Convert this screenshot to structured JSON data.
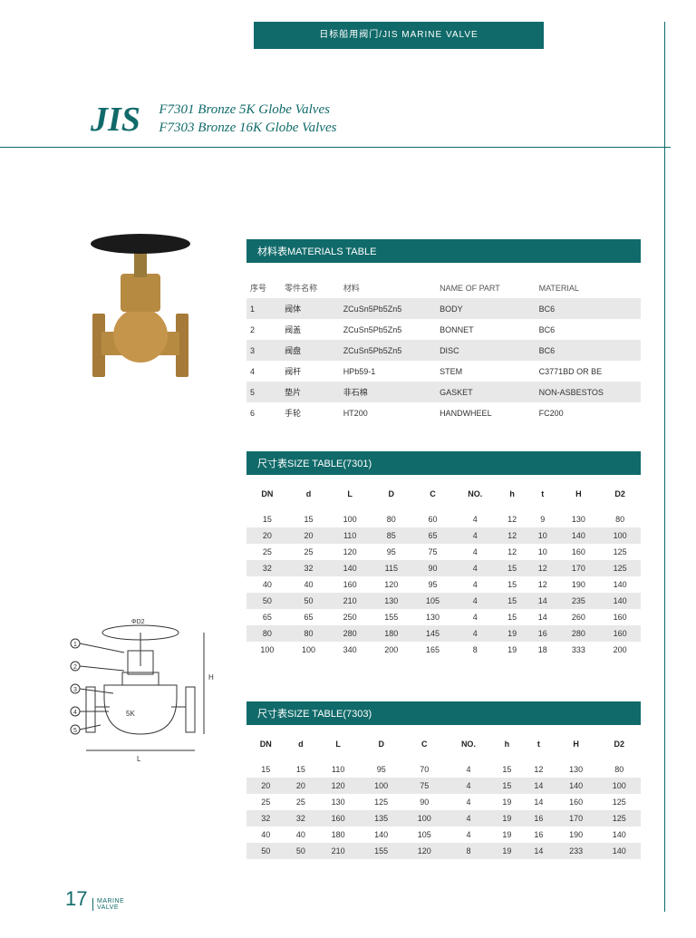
{
  "banner": "日标船用阀门/JIS MARINE VALVE",
  "logo": "JIS",
  "title1": "F7301 Bronze 5K Globe Valves",
  "title2": "F7303 Bronze 16K Globe Valves",
  "section_materials": "材料表MATERIALS TABLE",
  "section_size1": "尺寸表SIZE TABLE(7301)",
  "section_size2": "尺寸表SIZE TABLE(7303)",
  "materials": {
    "head": [
      "序号",
      "零件名称",
      "材料",
      "NAME OF PART",
      "MATERIAL"
    ],
    "rows": [
      [
        "1",
        "阀体",
        "ZCuSn5Pb5Zn5",
        "BODY",
        "BC6"
      ],
      [
        "2",
        "阀盖",
        "ZCuSn5Pb5Zn5",
        "BONNET",
        "BC6"
      ],
      [
        "3",
        "阀盘",
        "ZCuSn5Pb5Zn5",
        "DISC",
        "BC6"
      ],
      [
        "4",
        "阀杆",
        "HPb59-1",
        "STEM",
        "C3771BD OR BE"
      ],
      [
        "5",
        "垫片",
        "非石棉",
        "GASKET",
        "NON-ASBESTOS"
      ],
      [
        "6",
        "手轮",
        "HT200",
        "HANDWHEEL",
        "FC200"
      ]
    ]
  },
  "size_head": [
    "DN",
    "d",
    "L",
    "D",
    "C",
    "NO.",
    "h",
    "t",
    "H",
    "D2"
  ],
  "size7301": [
    [
      "15",
      "15",
      "100",
      "80",
      "60",
      "4",
      "12",
      "9",
      "130",
      "80"
    ],
    [
      "20",
      "20",
      "110",
      "85",
      "65",
      "4",
      "12",
      "10",
      "140",
      "100"
    ],
    [
      "25",
      "25",
      "120",
      "95",
      "75",
      "4",
      "12",
      "10",
      "160",
      "125"
    ],
    [
      "32",
      "32",
      "140",
      "115",
      "90",
      "4",
      "15",
      "12",
      "170",
      "125"
    ],
    [
      "40",
      "40",
      "160",
      "120",
      "95",
      "4",
      "15",
      "12",
      "190",
      "140"
    ],
    [
      "50",
      "50",
      "210",
      "130",
      "105",
      "4",
      "15",
      "14",
      "235",
      "140"
    ],
    [
      "65",
      "65",
      "250",
      "155",
      "130",
      "4",
      "15",
      "14",
      "260",
      "160"
    ],
    [
      "80",
      "80",
      "280",
      "180",
      "145",
      "4",
      "19",
      "16",
      "280",
      "160"
    ],
    [
      "100",
      "100",
      "340",
      "200",
      "165",
      "8",
      "19",
      "18",
      "333",
      "200"
    ]
  ],
  "size7303": [
    [
      "15",
      "15",
      "110",
      "95",
      "70",
      "4",
      "15",
      "12",
      "130",
      "80"
    ],
    [
      "20",
      "20",
      "120",
      "100",
      "75",
      "4",
      "15",
      "14",
      "140",
      "100"
    ],
    [
      "25",
      "25",
      "130",
      "125",
      "90",
      "4",
      "19",
      "14",
      "160",
      "125"
    ],
    [
      "32",
      "32",
      "160",
      "135",
      "100",
      "4",
      "19",
      "16",
      "170",
      "125"
    ],
    [
      "40",
      "40",
      "180",
      "140",
      "105",
      "4",
      "19",
      "16",
      "190",
      "140"
    ],
    [
      "50",
      "50",
      "210",
      "155",
      "120",
      "8",
      "19",
      "14",
      "233",
      "140"
    ]
  ],
  "page_number": "17",
  "page_label1": "MARINE",
  "page_label2": "VALVE",
  "colors": {
    "teal": "#116a6a",
    "row_alt": "#e8e8e8",
    "bronze": "#b78a42"
  }
}
